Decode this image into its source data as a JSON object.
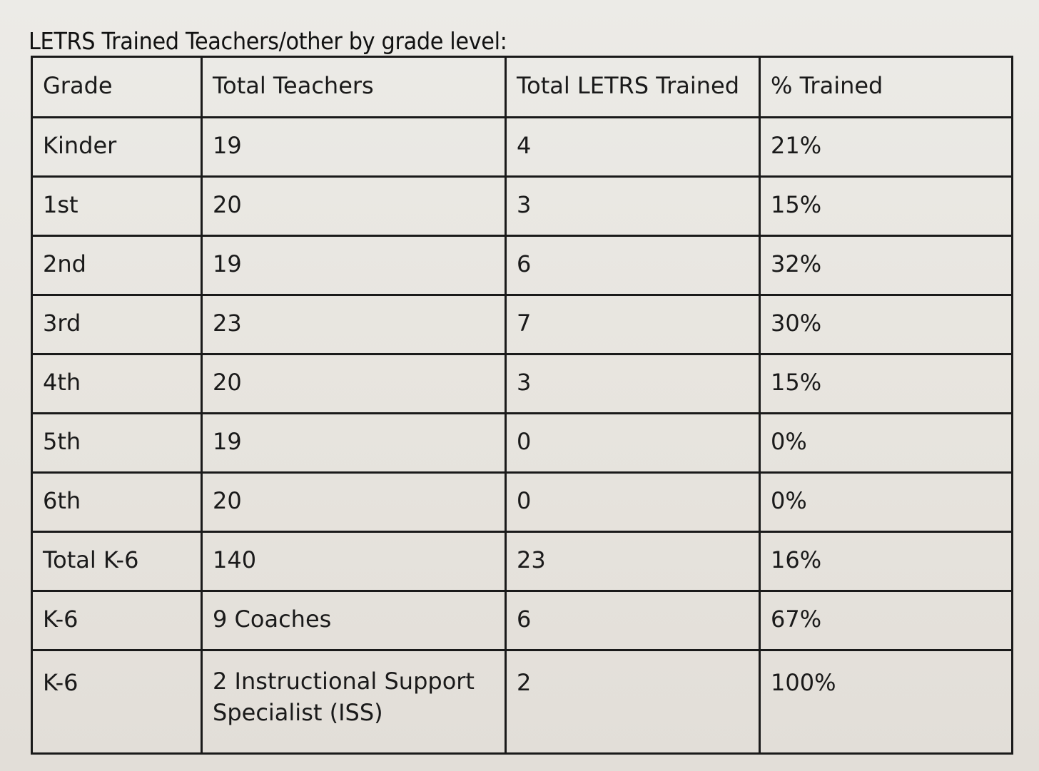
{
  "title": "LETRS Trained Teachers/other  by grade level:",
  "table": {
    "headers": [
      "Grade",
      "Total Teachers",
      "Total LETRS Trained",
      "% Trained"
    ],
    "rows": [
      [
        "Kinder",
        "19",
        "4",
        "21%"
      ],
      [
        "1st",
        "20",
        "3",
        "15%"
      ],
      [
        "2nd",
        "19",
        "6",
        "32%"
      ],
      [
        "3rd",
        "23",
        "7",
        "30%"
      ],
      [
        "4th",
        "20",
        "3",
        "15%"
      ],
      [
        "5th",
        "19",
        "0",
        "0%"
      ],
      [
        "6th",
        "20",
        "0",
        "0%"
      ],
      [
        "Total K-6",
        "140",
        "23",
        "16%"
      ],
      [
        "K-6",
        "9 Coaches",
        "6",
        "67%"
      ],
      [
        "K-6",
        "2 Instructional Support Specialist (ISS)",
        "2",
        "100%"
      ]
    ]
  }
}
